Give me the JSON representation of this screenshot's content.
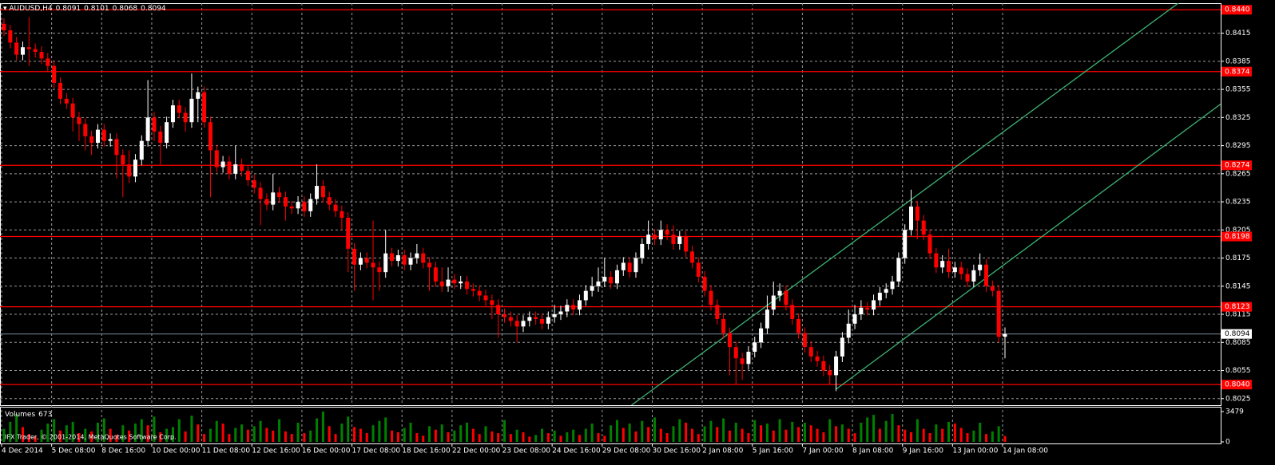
{
  "chart_data": [
    {
      "type": "candlestick",
      "title": "AUDUSD,H4",
      "categories": [
        "4 Dec 2014",
        null,
        null,
        null,
        null,
        null,
        null,
        null,
        "5 Dec 08:00",
        null,
        null,
        null,
        null,
        null,
        null,
        null,
        "8 Dec 16:00",
        null,
        null,
        null,
        null,
        null,
        null,
        null,
        "10 Dec 00:00",
        null,
        null,
        null,
        null,
        null,
        null,
        null,
        "11 Dec 08:00",
        null,
        null,
        null,
        null,
        null,
        null,
        null,
        "12 Dec 16:00",
        null,
        null,
        null,
        null,
        null,
        null,
        null,
        "16 Dec 00:00",
        null,
        null,
        null,
        null,
        null,
        null,
        null,
        "17 Dec 08:00",
        null,
        null,
        null,
        null,
        null,
        null,
        null,
        "18 Dec 16:00",
        null,
        null,
        null,
        null,
        null,
        null,
        null,
        "22 Dec 00:00",
        null,
        null,
        null,
        null,
        null,
        null,
        null,
        "23 Dec 08:00",
        null,
        null,
        null,
        null,
        null,
        null,
        null,
        "24 Dec 16:00",
        null,
        null,
        null,
        null,
        null,
        null,
        null,
        "29 Dec 08:00",
        null,
        null,
        null,
        null,
        null,
        null,
        null,
        "30 Dec 16:00",
        null,
        null,
        null,
        null,
        null,
        null,
        null,
        "2 Jan 08:00",
        null,
        null,
        null,
        null,
        null,
        null,
        null,
        "5 Jan 16:00",
        null,
        null,
        null,
        null,
        null,
        null,
        null,
        "7 Jan 00:00",
        null,
        null,
        null,
        null,
        null,
        null,
        null,
        "8 Jan 08:00",
        null,
        null,
        null,
        null,
        null,
        null,
        null,
        "9 Jan 16:00",
        null,
        null,
        null,
        null,
        null,
        null,
        null,
        "13 Jan 00:00",
        null,
        null,
        null,
        null,
        null,
        null,
        null,
        "14 Jan 08:00"
      ],
      "open": [
        0.8425,
        0.8418,
        0.8405,
        0.8392,
        0.84,
        0.8398,
        0.8395,
        0.8388,
        0.838,
        0.8362,
        0.8345,
        0.834,
        0.8325,
        0.8318,
        0.8305,
        0.8298,
        0.8312,
        0.83,
        0.8302,
        0.8285,
        0.8275,
        0.8262,
        0.828,
        0.83,
        0.8325,
        0.831,
        0.8298,
        0.832,
        0.8338,
        0.833,
        0.832,
        0.8345,
        0.8352,
        0.832,
        0.829,
        0.8272,
        0.8278,
        0.8265,
        0.8275,
        0.8268,
        0.8258,
        0.825,
        0.8238,
        0.8232,
        0.8245,
        0.824,
        0.823,
        0.8228,
        0.8235,
        0.8225,
        0.8238,
        0.8252,
        0.824,
        0.8232,
        0.8225,
        0.8218,
        0.8185,
        0.8168,
        0.8175,
        0.817,
        0.8165,
        0.816,
        0.818,
        0.8172,
        0.8178,
        0.8168,
        0.8175,
        0.818,
        0.817,
        0.8165,
        0.815,
        0.8145,
        0.8152,
        0.8148,
        0.815,
        0.8142,
        0.814,
        0.8135,
        0.813,
        0.8125,
        0.8115,
        0.8112,
        0.8108,
        0.8102,
        0.8108,
        0.8112,
        0.811,
        0.8105,
        0.8112,
        0.8115,
        0.8118,
        0.8125,
        0.812,
        0.813,
        0.814,
        0.8145,
        0.815,
        0.8155,
        0.8148,
        0.8162,
        0.817,
        0.816,
        0.8175,
        0.819,
        0.82,
        0.8195,
        0.8205,
        0.82,
        0.819,
        0.8198,
        0.8182,
        0.817,
        0.8155,
        0.814,
        0.8125,
        0.811,
        0.8095,
        0.808,
        0.8068,
        0.8062,
        0.8075,
        0.8085,
        0.81,
        0.812,
        0.8135,
        0.814,
        0.8125,
        0.811,
        0.8095,
        0.808,
        0.807,
        0.8065,
        0.8055,
        0.805,
        0.807,
        0.809,
        0.8105,
        0.8115,
        0.8122,
        0.812,
        0.813,
        0.8138,
        0.8142,
        0.815,
        0.8175,
        0.8205,
        0.823,
        0.8215,
        0.82,
        0.818,
        0.8165,
        0.8172,
        0.816,
        0.8165,
        0.8158,
        0.815,
        0.8162,
        0.8168,
        0.8145,
        0.814,
        0.8091
      ],
      "high": [
        0.8431,
        0.8424,
        0.8411,
        0.8406,
        0.8432,
        0.8404,
        0.8401,
        0.8394,
        0.8386,
        0.8368,
        0.8351,
        0.8346,
        0.8331,
        0.8324,
        0.8311,
        0.8318,
        0.8318,
        0.8308,
        0.8308,
        0.8291,
        0.829,
        0.8286,
        0.8306,
        0.8365,
        0.8331,
        0.8316,
        0.8326,
        0.8344,
        0.8344,
        0.8336,
        0.8372,
        0.8358,
        0.8358,
        0.8326,
        0.8296,
        0.8284,
        0.8284,
        0.8295,
        0.8281,
        0.8274,
        0.8264,
        0.8256,
        0.8244,
        0.8265,
        0.8251,
        0.8246,
        0.8236,
        0.8241,
        0.8241,
        0.8244,
        0.8275,
        0.8258,
        0.8246,
        0.8238,
        0.8231,
        0.8224,
        0.8191,
        0.8181,
        0.8181,
        0.8215,
        0.8171,
        0.8205,
        0.8186,
        0.8184,
        0.8184,
        0.8181,
        0.819,
        0.8186,
        0.8176,
        0.8171,
        0.8165,
        0.8165,
        0.8158,
        0.8156,
        0.8156,
        0.8148,
        0.8146,
        0.8141,
        0.8136,
        0.8131,
        0.8121,
        0.8118,
        0.8114,
        0.8114,
        0.8118,
        0.8118,
        0.8116,
        0.8118,
        0.8125,
        0.8124,
        0.8131,
        0.8131,
        0.8136,
        0.8146,
        0.8155,
        0.8165,
        0.8175,
        0.8161,
        0.8168,
        0.8176,
        0.8176,
        0.8181,
        0.8196,
        0.8215,
        0.8206,
        0.8215,
        0.8211,
        0.821,
        0.8204,
        0.8204,
        0.8188,
        0.8176,
        0.8161,
        0.8146,
        0.8131,
        0.8116,
        0.8101,
        0.8086,
        0.8074,
        0.8081,
        0.8091,
        0.8106,
        0.8135,
        0.815,
        0.8148,
        0.8146,
        0.8131,
        0.8116,
        0.8101,
        0.8086,
        0.8076,
        0.8071,
        0.8061,
        0.8076,
        0.8096,
        0.812,
        0.8125,
        0.813,
        0.8128,
        0.8136,
        0.8144,
        0.8148,
        0.8156,
        0.8181,
        0.8211,
        0.8248,
        0.8236,
        0.8221,
        0.8206,
        0.8186,
        0.8178,
        0.8185,
        0.8171,
        0.8171,
        0.8164,
        0.8168,
        0.818,
        0.8174,
        0.8151,
        0.8146,
        0.8101
      ],
      "low": [
        0.8412,
        0.8399,
        0.8386,
        0.8386,
        0.838,
        0.8389,
        0.8382,
        0.8374,
        0.8356,
        0.8339,
        0.8334,
        0.831,
        0.83,
        0.829,
        0.8285,
        0.8292,
        0.8294,
        0.8294,
        0.826,
        0.824,
        0.8255,
        0.8256,
        0.8274,
        0.8294,
        0.83,
        0.8275,
        0.8292,
        0.8314,
        0.8324,
        0.831,
        0.8314,
        0.832,
        0.8314,
        0.824,
        0.8266,
        0.8266,
        0.8259,
        0.8259,
        0.8262,
        0.8252,
        0.8244,
        0.821,
        0.8226,
        0.8226,
        0.8234,
        0.8215,
        0.8222,
        0.8222,
        0.8219,
        0.8219,
        0.8232,
        0.8234,
        0.8226,
        0.8219,
        0.8205,
        0.816,
        0.814,
        0.8162,
        0.8164,
        0.813,
        0.814,
        0.8154,
        0.8166,
        0.8166,
        0.8162,
        0.8162,
        0.8169,
        0.8164,
        0.814,
        0.8144,
        0.8139,
        0.8139,
        0.8142,
        0.8142,
        0.8136,
        0.8134,
        0.8129,
        0.8124,
        0.811,
        0.809,
        0.8106,
        0.8102,
        0.8085,
        0.8096,
        0.8102,
        0.8104,
        0.8099,
        0.8099,
        0.8106,
        0.8109,
        0.8112,
        0.8114,
        0.8114,
        0.8124,
        0.8134,
        0.8139,
        0.8144,
        0.8142,
        0.8142,
        0.8156,
        0.8154,
        0.8154,
        0.8169,
        0.8184,
        0.8189,
        0.8189,
        0.8194,
        0.8184,
        0.8184,
        0.8176,
        0.8164,
        0.8149,
        0.8134,
        0.8119,
        0.8104,
        0.8089,
        0.805,
        0.804,
        0.8045,
        0.8056,
        0.8069,
        0.8079,
        0.8094,
        0.8114,
        0.8129,
        0.8119,
        0.8104,
        0.8089,
        0.8074,
        0.8064,
        0.8059,
        0.8049,
        0.804,
        0.8033,
        0.8064,
        0.8084,
        0.8099,
        0.8109,
        0.8114,
        0.8114,
        0.8124,
        0.8132,
        0.8136,
        0.8144,
        0.8169,
        0.8199,
        0.8195,
        0.8194,
        0.8174,
        0.8159,
        0.8159,
        0.8154,
        0.8154,
        0.8152,
        0.8144,
        0.8144,
        0.8156,
        0.8139,
        0.8134,
        0.8085,
        0.8068
      ],
      "close": [
        0.8418,
        0.8405,
        0.8392,
        0.84,
        0.8398,
        0.8395,
        0.8388,
        0.838,
        0.8362,
        0.8345,
        0.834,
        0.8325,
        0.8318,
        0.8305,
        0.8298,
        0.8312,
        0.83,
        0.8302,
        0.8285,
        0.8275,
        0.8262,
        0.828,
        0.83,
        0.8325,
        0.831,
        0.8298,
        0.832,
        0.8338,
        0.833,
        0.832,
        0.8345,
        0.8352,
        0.832,
        0.829,
        0.8272,
        0.8278,
        0.8265,
        0.8275,
        0.8268,
        0.8258,
        0.825,
        0.8238,
        0.8232,
        0.8245,
        0.824,
        0.823,
        0.8228,
        0.8235,
        0.8225,
        0.8238,
        0.8252,
        0.824,
        0.8232,
        0.8225,
        0.8218,
        0.8185,
        0.8168,
        0.8175,
        0.817,
        0.8165,
        0.816,
        0.818,
        0.8172,
        0.8178,
        0.8168,
        0.8175,
        0.818,
        0.817,
        0.8165,
        0.815,
        0.8145,
        0.8152,
        0.8148,
        0.815,
        0.8142,
        0.814,
        0.8135,
        0.813,
        0.8125,
        0.8115,
        0.8112,
        0.8108,
        0.8102,
        0.8108,
        0.8112,
        0.811,
        0.8105,
        0.8112,
        0.8115,
        0.8118,
        0.8125,
        0.812,
        0.813,
        0.814,
        0.8145,
        0.815,
        0.8155,
        0.8148,
        0.8162,
        0.817,
        0.816,
        0.8175,
        0.819,
        0.82,
        0.8195,
        0.8205,
        0.82,
        0.819,
        0.8198,
        0.8182,
        0.817,
        0.8155,
        0.814,
        0.8125,
        0.811,
        0.8095,
        0.808,
        0.8068,
        0.8062,
        0.8075,
        0.8085,
        0.81,
        0.812,
        0.8135,
        0.814,
        0.8125,
        0.811,
        0.8095,
        0.808,
        0.807,
        0.8065,
        0.8055,
        0.805,
        0.807,
        0.809,
        0.8105,
        0.8115,
        0.8122,
        0.812,
        0.813,
        0.8138,
        0.8142,
        0.815,
        0.8175,
        0.8205,
        0.823,
        0.8215,
        0.82,
        0.818,
        0.8165,
        0.8172,
        0.816,
        0.8165,
        0.8158,
        0.815,
        0.8162,
        0.8168,
        0.8145,
        0.814,
        0.8091,
        0.8094
      ],
      "up_color": "#ffffff",
      "down_color": "#ff0000",
      "ylim": [
        0.8018,
        0.8447
      ],
      "yticks": [
        0.8025,
        0.8055,
        0.8085,
        0.8115,
        0.8145,
        0.8175,
        0.8205,
        0.8235,
        0.8265,
        0.8295,
        0.8325,
        0.8355,
        0.8385,
        0.8415
      ],
      "grid": true,
      "levels": [
        {
          "value": 0.844,
          "label": "0.8440"
        },
        0.8374,
        0.8274,
        0.8198,
        0.8123,
        {
          "value": 0.804,
          "label": "0.8040"
        }
      ],
      "level_color": "#ff0000",
      "price_line_color": "#778899",
      "trendlines": {
        "color": "#3cb371",
        "lines": [
          [
            [
              100.3,
              0.8018
            ],
            [
              187.7,
              0.8447
            ]
          ],
          [
            [
              133,
              0.8035
            ],
            [
              194.8,
              0.8341
            ]
          ]
        ]
      }
    },
    {
      "type": "bar",
      "title": "Volumes",
      "values": [
        1500,
        2300,
        3200,
        1700,
        900,
        600,
        1400,
        2100,
        2600,
        1300,
        1900,
        2300,
        1000,
        1500,
        1200,
        2200,
        2700,
        1500,
        800,
        1900,
        1300,
        2100,
        2600,
        1900,
        2900,
        1100,
        1500,
        1700,
        2600,
        1200,
        3000,
        2000,
        900,
        1500,
        2400,
        2100,
        900,
        1600,
        2000,
        1400,
        1800,
        2400,
        1600,
        1300,
        2600,
        1200,
        900,
        2200,
        1000,
        1300,
        2700,
        3479,
        1800,
        900,
        2100,
        2900,
        1700,
        1500,
        1000,
        1900,
        2400,
        2800,
        1300,
        1100,
        1600,
        2200,
        1000,
        700,
        1800,
        1400,
        2000,
        1100,
        1300,
        1900,
        2200,
        1500,
        900,
        1800,
        1200,
        1000,
        2500,
        900,
        1400,
        1100,
        600,
        800,
        1500,
        1000,
        1300,
        700,
        1100,
        1400,
        800,
        1500,
        2100,
        1000,
        700,
        1900,
        2500,
        1600,
        2100,
        1200,
        2400,
        1700,
        2800,
        1500,
        1000,
        1800,
        2600,
        2200,
        1500,
        900,
        1800,
        2400,
        1700,
        2700,
        1300,
        2200,
        1500,
        1000,
        2500,
        1900,
        2100,
        1300,
        2600,
        1400,
        2300,
        1700,
        2200,
        1900,
        1500,
        1100,
        2600,
        1800,
        2000,
        1500,
        1000,
        2200,
        2800,
        3100,
        1500,
        2400,
        3200,
        1900,
        1400,
        1100,
        2600,
        1500,
        1000,
        2000,
        1500,
        2300,
        2100,
        1600,
        1000,
        1300,
        2200,
        900,
        1200,
        1800,
        673
      ],
      "up_color": "#008000",
      "down_color": "#ff0000",
      "ylim": [
        0,
        3479
      ],
      "yticks": [
        0,
        3479
      ],
      "annotations": [
        "IFX Trader, © 2001-2014, MetaQuotes Software Corp."
      ]
    }
  ]
}
